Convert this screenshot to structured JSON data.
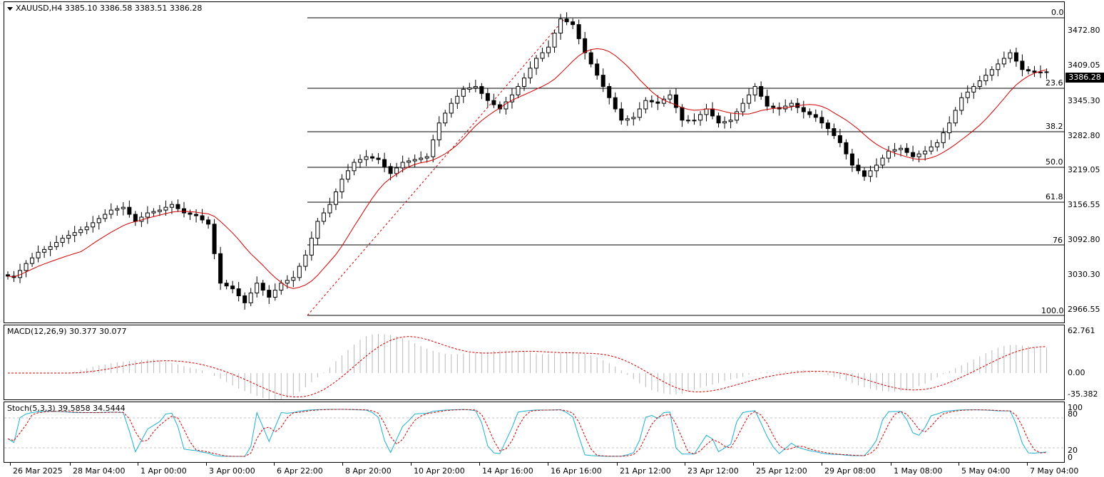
{
  "main": {
    "symbol_line": "XAUUSD,H4  3385.10 3386.58 3383.51 3386.28",
    "current_price": "3386.28",
    "y_ticks": [
      "3472.80",
      "3409.05",
      "3345.30",
      "3282.80",
      "3219.05",
      "3156.55",
      "3092.80",
      "3030.30",
      "2966.55"
    ],
    "fib_levels": [
      "0.0",
      "23.6",
      "38.2",
      "50.0",
      "61.8",
      "76",
      "100.0"
    ]
  },
  "macd": {
    "label": "MACD(12,26,9) 30.377 30.077",
    "y_ticks": [
      "62.761",
      "0.00",
      "-35.382"
    ]
  },
  "stoch": {
    "label": "Stoch(5,3,3) 39.5858 34.5444",
    "y_ticks": [
      "100",
      "80",
      "20",
      "0"
    ]
  },
  "x_ticks": [
    "26 Mar 2025",
    "28 Mar 04:00",
    "1 Apr 00:00",
    "3 Apr 00:00",
    "6 Apr 22:00",
    "8 Apr 20:00",
    "10 Apr 20:00",
    "14 Apr 16:00",
    "16 Apr 16:00",
    "21 Apr 12:00",
    "23 Apr 12:00",
    "25 Apr 12:00",
    "29 Apr 08:00",
    "1 May 08:00",
    "5 May 04:00",
    "7 May 04:00"
  ],
  "colors": {
    "ma": "#d00000",
    "signal": "#d00000",
    "stoch_main": "#1ab0d0",
    "histogram": "#b8b8b8",
    "candle": "#000000"
  },
  "chart_data": [
    {
      "type": "candlestick",
      "title": "XAUUSD,H4",
      "ylim": [
        2940,
        3510
      ],
      "approx_close_path": [
        3025,
        3020,
        3045,
        3065,
        3075,
        3090,
        3100,
        3110,
        3125,
        3140,
        3145,
        3120,
        3135,
        3140,
        3150,
        3135,
        3130,
        3115,
        3010,
        3000,
        2975,
        3010,
        2985,
        3010,
        3020,
        3060,
        3120,
        3150,
        3195,
        3225,
        3235,
        3230,
        3205,
        3225,
        3230,
        3235,
        3295,
        3330,
        3355,
        3360,
        3335,
        3320,
        3345,
        3375,
        3410,
        3430,
        3480,
        3470,
        3420,
        3380,
        3340,
        3300,
        3305,
        3335,
        3330,
        3345,
        3300,
        3300,
        3320,
        3295,
        3300,
        3330,
        3360,
        3325,
        3320,
        3330,
        3315,
        3305,
        3285,
        3260,
        3220,
        3200,
        3220,
        3245,
        3250,
        3235,
        3245,
        3260,
        3295,
        3340,
        3360,
        3380,
        3400,
        3420,
        3390,
        3385,
        3386
      ],
      "moving_average": "MA (red)"
    },
    {
      "type": "bar",
      "title": "MACD(12,26,9)",
      "values_summary": {
        "main": 30.377,
        "signal": 30.077
      },
      "ylim": [
        -35.382,
        62.761
      ]
    },
    {
      "type": "line",
      "title": "Stoch(5,3,3)",
      "values_summary": {
        "main": 39.5858,
        "signal": 34.5444
      },
      "ylim": [
        0,
        100
      ],
      "levels": [
        20,
        80
      ]
    }
  ]
}
